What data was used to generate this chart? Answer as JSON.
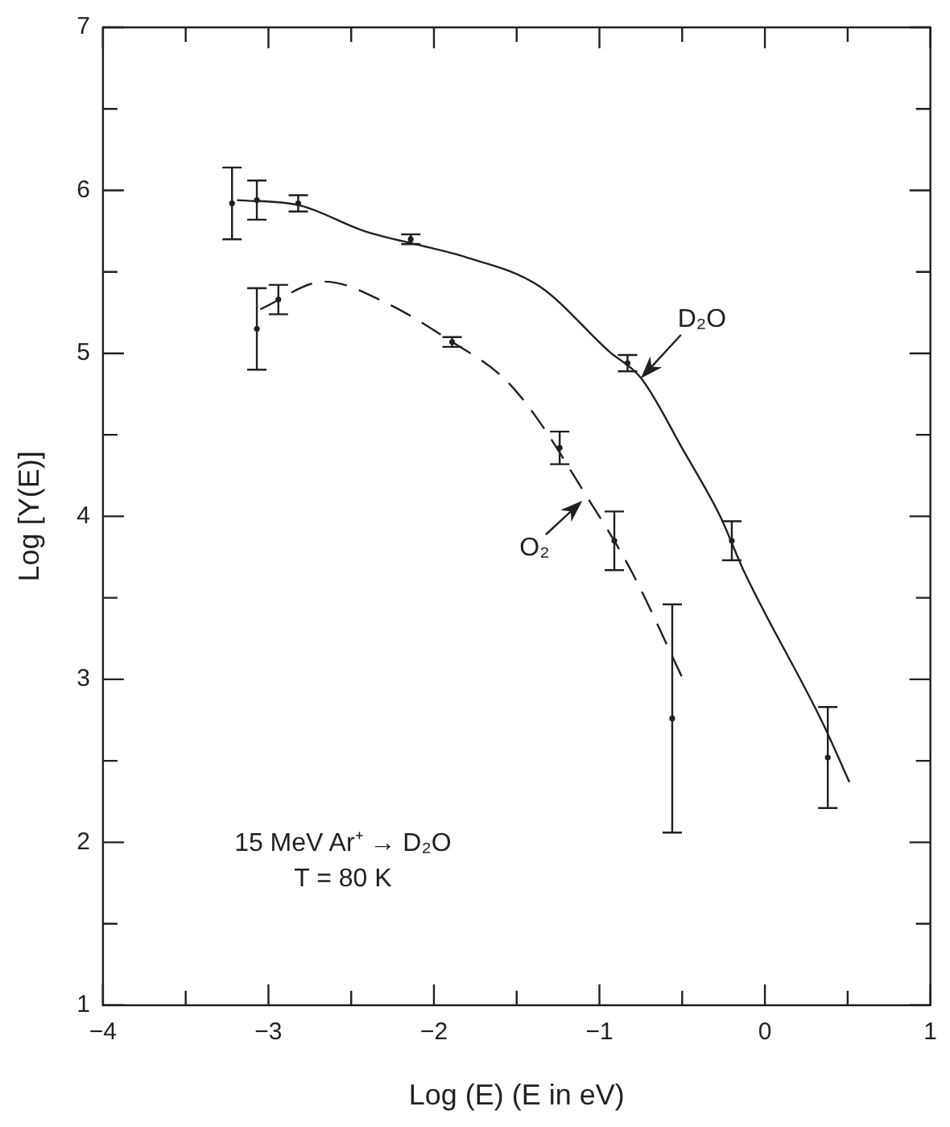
{
  "chart_data": {
    "type": "scatter",
    "xlabel": "Log (E) (E in eV)",
    "ylabel": "Log [Y(E)]",
    "xlim": [
      -4,
      1
    ],
    "xticks": [
      -4,
      {
        "value": -3.5,
        "label": null
      },
      {
        "value": -3,
        "label": "−3"
      },
      {
        "value": -2.5,
        "label": null
      },
      {
        "value": -2,
        "label": "−2"
      },
      {
        "value": -1.5,
        "label": null
      },
      {
        "value": -1,
        "label": "−1"
      },
      {
        "value": -0.5,
        "label": null
      },
      0,
      {
        "value": 0.5,
        "label": null
      },
      1
    ],
    "ylim": [
      1,
      7
    ],
    "yticks": [
      1,
      {
        "value": 1.5,
        "label": null
      },
      2,
      {
        "value": 2.5,
        "label": null
      },
      3,
      {
        "value": 3.5,
        "label": null
      },
      4,
      {
        "value": 4.5,
        "label": null
      },
      5,
      {
        "value": 5.5,
        "label": null
      },
      6,
      {
        "value": 6.5,
        "label": null
      },
      7
    ],
    "grid": false,
    "series": [
      {
        "marker": "circle",
        "color": "#231f20",
        "x": [
          -3.22,
          -3.07,
          -2.82,
          -2.14,
          -0.83,
          -0.2,
          0.38
        ],
        "values": [
          5.92,
          5.94,
          5.92,
          5.7,
          4.94,
          3.85,
          2.52
        ],
        "errors": [
          0.22,
          0.12,
          0.05,
          0.03,
          0.05,
          0.12,
          0.31
        ]
      },
      {
        "marker": "circle",
        "color": "#231f20",
        "x": [
          -3.07,
          -2.94,
          -1.89,
          -1.24,
          -0.91,
          -0.56
        ],
        "values": [
          5.15,
          5.33,
          5.07,
          4.42,
          3.85,
          2.76
        ],
        "errors": [
          0.25,
          0.09,
          0.03,
          0.1,
          0.18,
          0.7
        ]
      },
      {
        "type": "line",
        "marker": "none",
        "line_style": "solid",
        "color": "#231f20",
        "x": [
          -3.19,
          -2.82,
          -2.42,
          -2.03,
          -1.84,
          -1.36,
          -0.94,
          -0.75,
          -0.49,
          -0.27,
          -0.13,
          0.35,
          0.51
        ],
        "values": [
          5.94,
          5.91,
          5.75,
          5.65,
          5.6,
          5.41,
          5.01,
          4.85,
          4.4,
          4.0,
          3.67,
          2.73,
          2.37
        ]
      },
      {
        "type": "line",
        "marker": "none",
        "line_style": "dashed",
        "color": "#231f20",
        "x": [
          -3.05,
          -2.66,
          -2.29,
          -1.89,
          -1.58,
          -1.39,
          -1.1,
          -0.81,
          -0.49
        ],
        "values": [
          5.27,
          5.44,
          5.31,
          5.07,
          4.85,
          4.62,
          4.16,
          3.67,
          2.99
        ]
      }
    ],
    "annotations": [
      {
        "text": "D₂O",
        "x": -0.75,
        "y": 4.85
      },
      {
        "text": "O₂",
        "x": -1.1,
        "y": 4.1
      },
      "15 MeV Ar⁺ → D₂O",
      "T = 80 K"
    ]
  }
}
